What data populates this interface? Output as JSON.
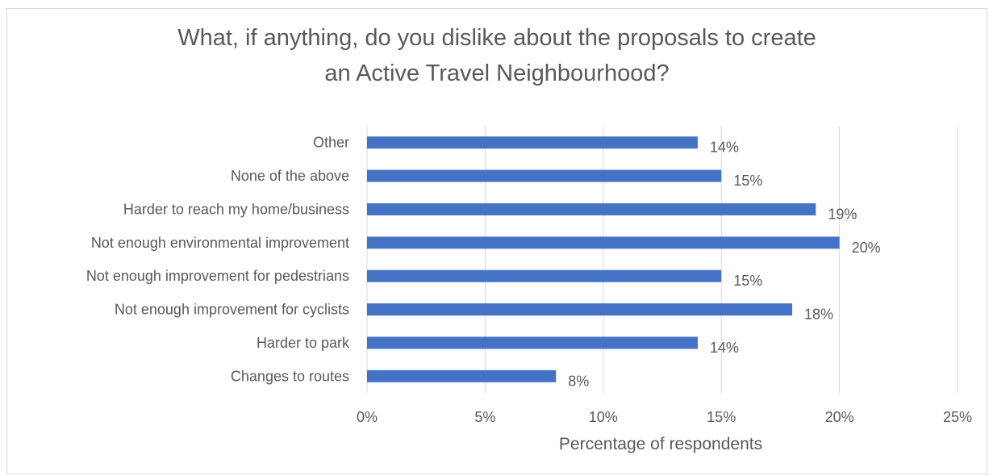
{
  "chart_data": {
    "type": "bar",
    "orientation": "horizontal",
    "title_lines": [
      "What, if anything, do you dislike about the proposals to create",
      "an Active Travel Neighbourhood?"
    ],
    "categories": [
      "Other",
      "None of the above",
      "Harder to reach my home/business",
      "Not enough environmental improvement",
      "Not enough improvement for pedestrians",
      "Not enough improvement for cyclists",
      "Harder to park",
      "Changes to routes"
    ],
    "values": [
      14,
      15,
      19,
      20,
      15,
      18,
      14,
      8
    ],
    "data_labels": [
      "14%",
      "15%",
      "19%",
      "20%",
      "15%",
      "18%",
      "14%",
      "8%"
    ],
    "xlim": [
      0,
      25
    ],
    "xticks": [
      0,
      5,
      10,
      15,
      20,
      25
    ],
    "xtick_labels": [
      "0%",
      "5%",
      "10%",
      "15%",
      "20%",
      "25%"
    ],
    "xlabel": "Percentage of respondents",
    "ylabel": "",
    "grid": true,
    "legend": "none",
    "bar_color": "#4472c4",
    "grid_color": "#d9d9d9",
    "text_color": "#595959"
  }
}
